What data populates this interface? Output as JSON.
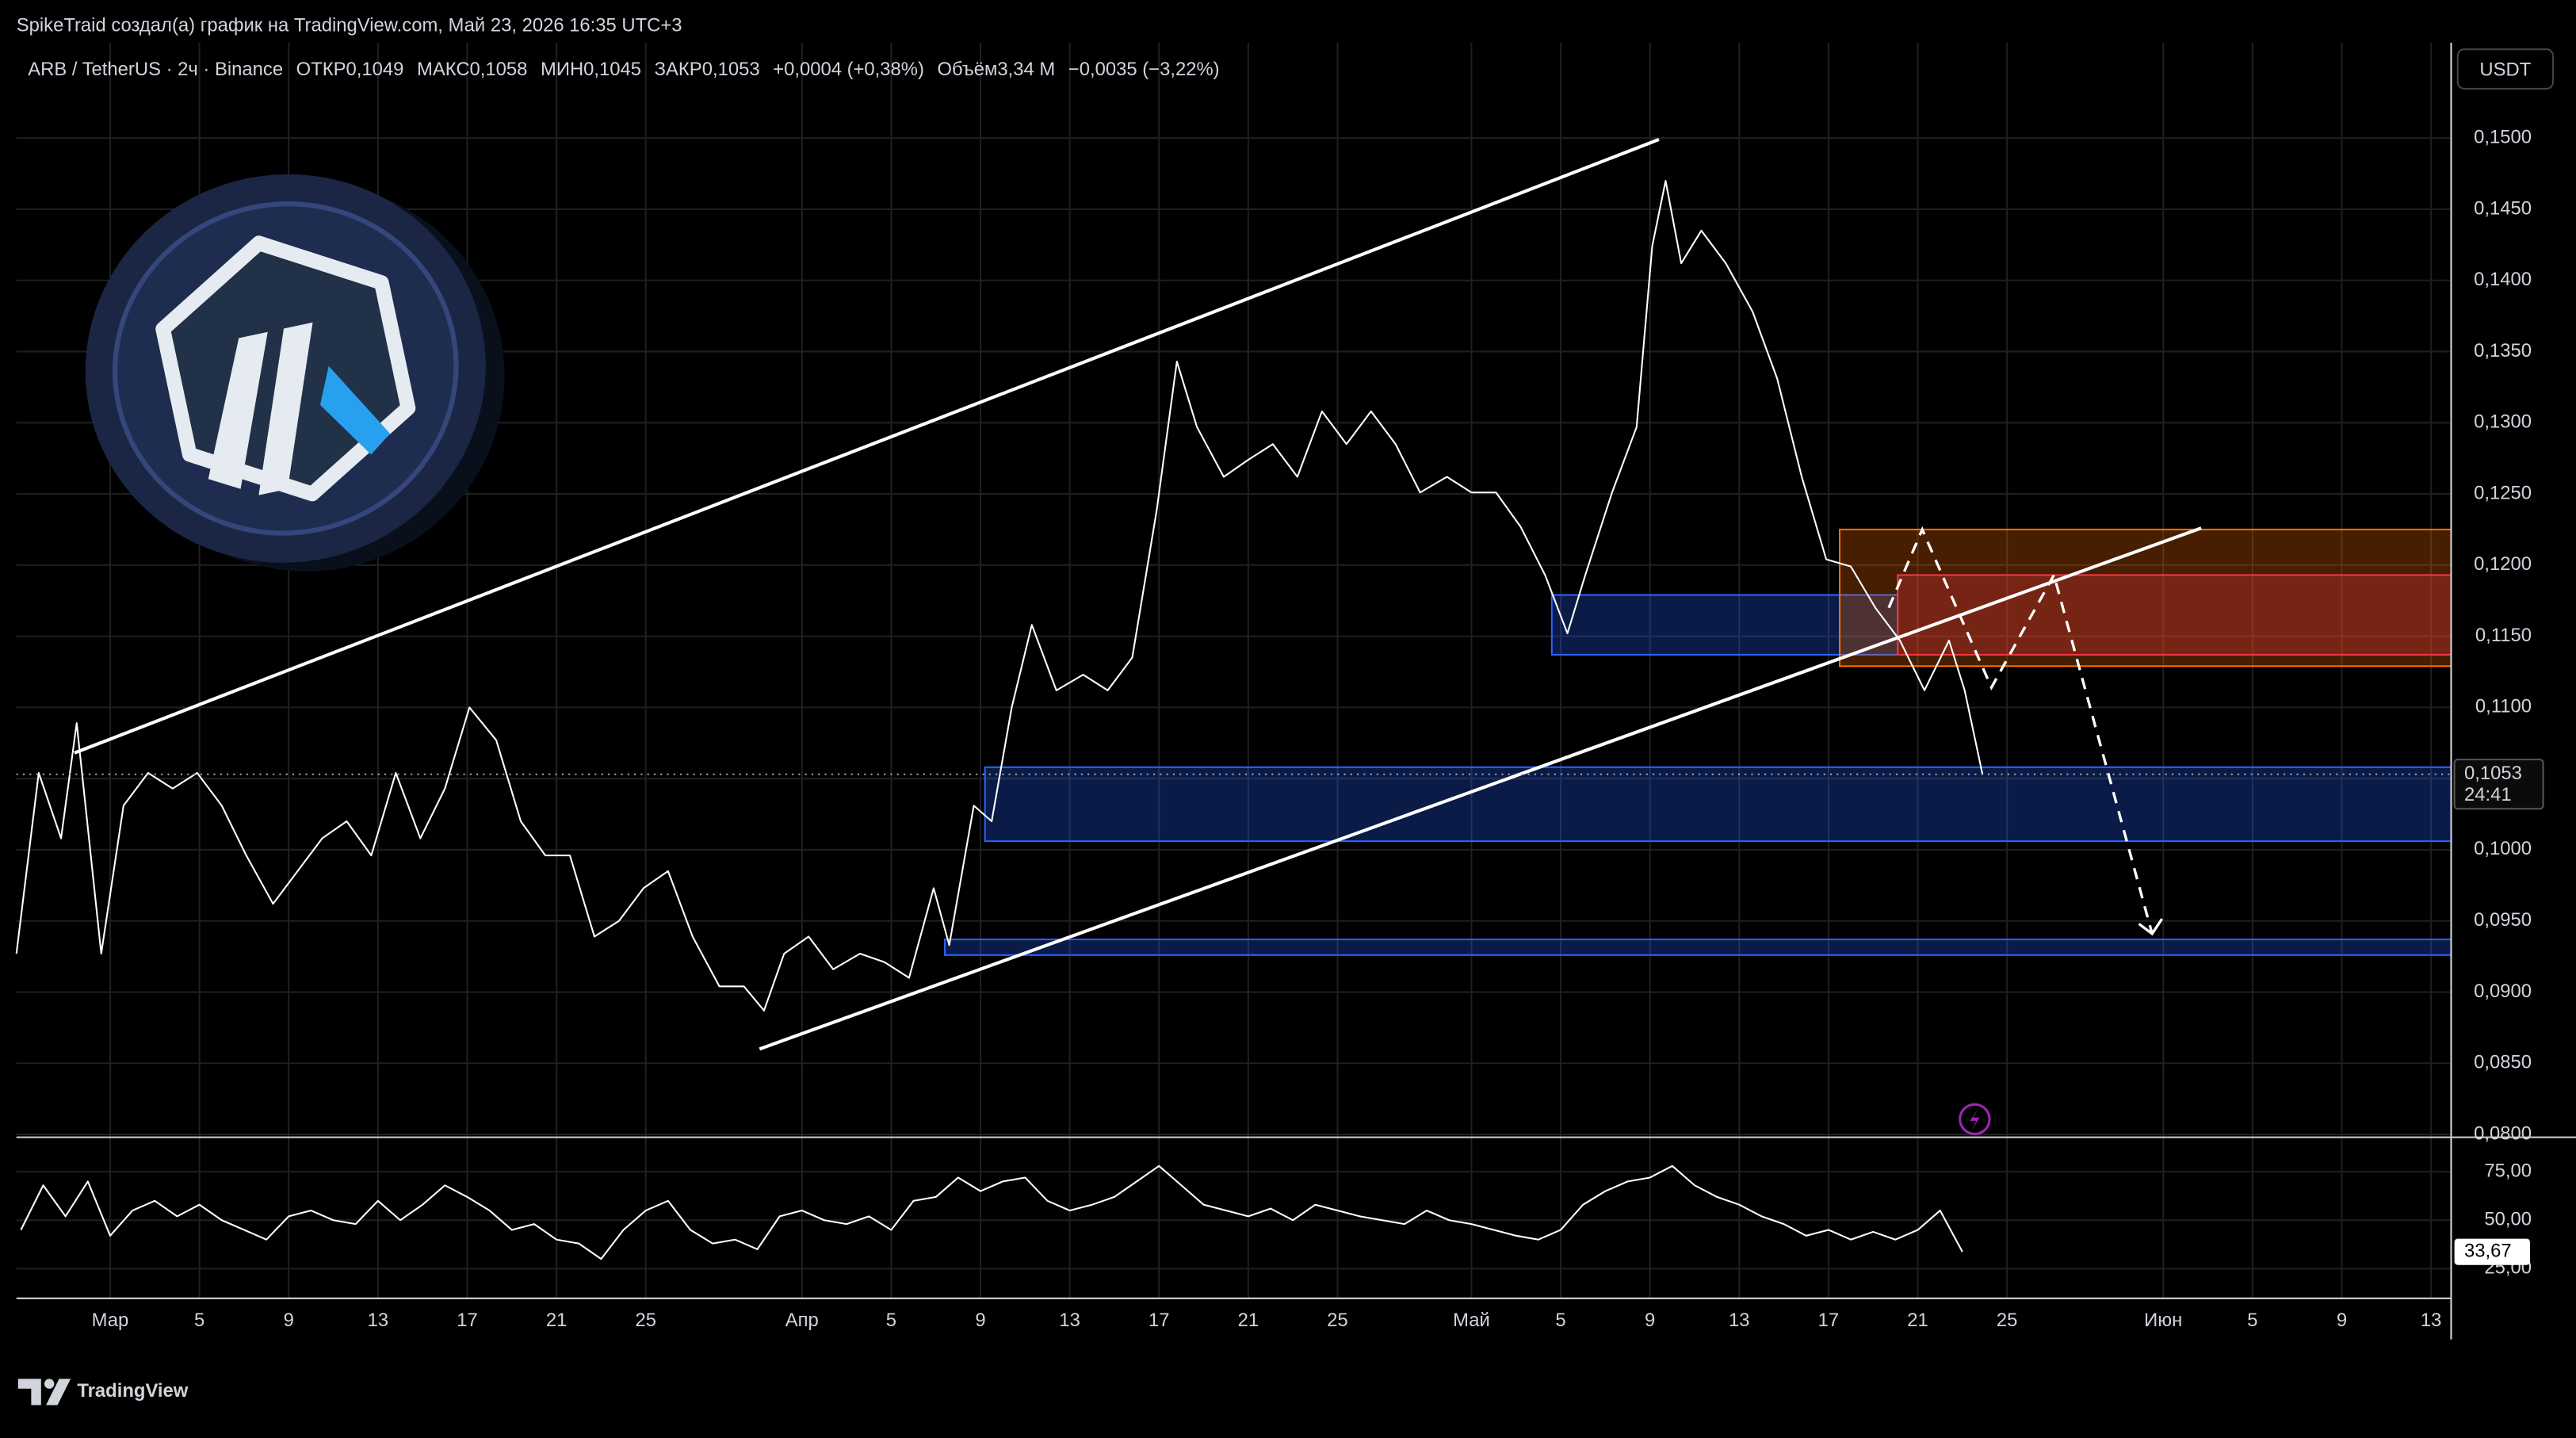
{
  "page": {
    "attribution": "SpikeTraid создал(а) график на TradingView.com, Май 23, 2026 16:35 UTC+3",
    "brand": "TradingView"
  },
  "chart_data": [
    {
      "type": "line",
      "legend": {
        "symbol": "ARB / TetherUS · 2ч · Binance",
        "items": [
          "ОТКР0,1049",
          "МАКС0,1058",
          "МИН0,1045",
          "ЗАКР0,1053",
          "+0,0004 (+0,38%)",
          "Объём3,34 М",
          "−0,0035 (−3,22%)"
        ]
      },
      "currency": "USDT",
      "last_value_label": "0,1053",
      "countdown": "24:41",
      "grid": true,
      "xlim": [
        -4.2,
        104.9
      ],
      "xticks": [
        {
          "value": 0,
          "label": "Мар"
        },
        {
          "value": 4,
          "label": "5"
        },
        {
          "value": 8,
          "label": "9"
        },
        {
          "value": 12,
          "label": "13"
        },
        {
          "value": 16,
          "label": "17"
        },
        {
          "value": 20,
          "label": "21"
        },
        {
          "value": 24,
          "label": "25"
        },
        {
          "value": 31,
          "label": "Апр"
        },
        {
          "value": 35,
          "label": "5"
        },
        {
          "value": 39,
          "label": "9"
        },
        {
          "value": 43,
          "label": "13"
        },
        {
          "value": 47,
          "label": "17"
        },
        {
          "value": 51,
          "label": "21"
        },
        {
          "value": 55,
          "label": "25"
        },
        {
          "value": 61,
          "label": "Май"
        },
        {
          "value": 65,
          "label": "5"
        },
        {
          "value": 69,
          "label": "9"
        },
        {
          "value": 73,
          "label": "13"
        },
        {
          "value": 77,
          "label": "17"
        },
        {
          "value": 81,
          "label": "21"
        },
        {
          "value": 85,
          "label": "25"
        },
        {
          "value": 92,
          "label": "Июн"
        },
        {
          "value": 96,
          "label": "5"
        },
        {
          "value": 100,
          "label": "9"
        },
        {
          "value": 104,
          "label": "13"
        }
      ],
      "ylim": [
        0.0798,
        0.1567
      ],
      "yticks": [
        {
          "value": 0.08,
          "label": "0,0800"
        },
        {
          "value": 0.085,
          "label": "0,0850"
        },
        {
          "value": 0.09,
          "label": "0,0900"
        },
        {
          "value": 0.095,
          "label": "0,0950"
        },
        {
          "value": 0.1,
          "label": "0,1000"
        },
        {
          "value": 0.105,
          "label": "0,1050"
        },
        {
          "value": 0.11,
          "label": "0,1100"
        },
        {
          "value": 0.115,
          "label": "0,1150"
        },
        {
          "value": 0.12,
          "label": "0,1200"
        },
        {
          "value": 0.125,
          "label": "0,1250"
        },
        {
          "value": 0.13,
          "label": "0,1300"
        },
        {
          "value": 0.135,
          "label": "0,1350"
        },
        {
          "value": 0.14,
          "label": "0,1400"
        },
        {
          "value": 0.145,
          "label": "0,1450"
        },
        {
          "value": 0.15,
          "label": "0,1500"
        }
      ],
      "color": "#ffffff",
      "x": [
        -4.2,
        -3.2,
        -2.2,
        -1.5,
        -0.4,
        0.6,
        1.7,
        2.8,
        3.9,
        5.0,
        6.1,
        7.3,
        8.4,
        9.5,
        10.6,
        11.7,
        12.8,
        13.9,
        15.0,
        16.1,
        17.3,
        18.4,
        19.5,
        20.6,
        21.7,
        22.8,
        23.9,
        25.0,
        26.1,
        27.3,
        28.4,
        29.3,
        30.2,
        31.3,
        32.4,
        33.6,
        34.7,
        35.8,
        36.9,
        37.6,
        38.7,
        39.5,
        40.4,
        41.3,
        42.4,
        43.6,
        44.7,
        45.8,
        46.9,
        47.8,
        48.7,
        49.9,
        51.0,
        52.1,
        53.2,
        54.3,
        55.4,
        56.5,
        57.6,
        58.7,
        59.9,
        61.0,
        62.1,
        63.2,
        64.3,
        65.3,
        66.1,
        67.3,
        68.4,
        69.1,
        69.7,
        70.4,
        71.3,
        72.4,
        73.6,
        74.7,
        75.8,
        76.9,
        78.0,
        79.1,
        80.2,
        81.3,
        82.4,
        83.1,
        83.9
      ],
      "values": [
        0.0927,
        0.1054,
        0.1008,
        0.1089,
        0.0927,
        0.1031,
        0.1054,
        0.1043,
        0.1054,
        0.1031,
        0.0996,
        0.0962,
        0.0985,
        0.1008,
        0.102,
        0.0996,
        0.1054,
        0.1008,
        0.1043,
        0.11,
        0.1077,
        0.102,
        0.0996,
        0.0996,
        0.0939,
        0.095,
        0.0973,
        0.0985,
        0.0939,
        0.0904,
        0.0904,
        0.0887,
        0.0927,
        0.0939,
        0.0916,
        0.0927,
        0.0921,
        0.091,
        0.0973,
        0.0933,
        0.1031,
        0.102,
        0.11,
        0.1158,
        0.1112,
        0.1123,
        0.1112,
        0.1135,
        0.1239,
        0.1343,
        0.1297,
        0.1262,
        0.1274,
        0.1285,
        0.1262,
        0.1308,
        0.1285,
        0.1308,
        0.1285,
        0.1251,
        0.1262,
        0.1251,
        0.1251,
        0.1227,
        0.1193,
        0.1152,
        0.1193,
        0.1251,
        0.1297,
        0.1424,
        0.147,
        0.1412,
        0.1435,
        0.1412,
        0.1378,
        0.1331,
        0.1262,
        0.1204,
        0.1199,
        0.117,
        0.1147,
        0.1112,
        0.1147,
        0.1112,
        0.1053
      ],
      "zones": [
        {
          "x": [
            39.2,
            104.9
          ],
          "low": 0.1006,
          "high": 0.1058,
          "color": "#2962ff"
        },
        {
          "x": [
            37.4,
            104.9
          ],
          "low": 0.0926,
          "high": 0.0937,
          "color": "#2962ff"
        },
        {
          "x": [
            64.6,
            80.1
          ],
          "low": 0.1137,
          "high": 0.1179,
          "color": "#2962ff"
        },
        {
          "x": [
            77.5,
            104.9
          ],
          "low": 0.1129,
          "high": 0.1225,
          "color": "#ff6d00"
        },
        {
          "x": [
            80.1,
            104.9
          ],
          "low": 0.1137,
          "high": 0.1193,
          "color": "#f23645"
        }
      ],
      "trendlines": [
        {
          "x": [
            -1.6,
            69.4
          ],
          "y": [
            0.1068,
            0.1499
          ],
          "color": "#ffffff"
        },
        {
          "x": [
            29.1,
            93.7
          ],
          "y": [
            0.086,
            0.1226
          ],
          "color": "#ffffff"
        }
      ],
      "projection": {
        "x": [
          79.7,
          81.2,
          84.3,
          87.1,
          91.5
        ],
        "y": [
          0.117,
          0.1225,
          0.1114,
          0.1193,
          0.0941
        ],
        "color": "#ffffff"
      }
    },
    {
      "type": "line",
      "xlim": [
        -4.2,
        104.9
      ],
      "ylim": [
        9.7,
        92.8
      ],
      "yticks": [
        {
          "value": 25,
          "label": "25,00"
        },
        {
          "value": 50,
          "label": "50,00"
        },
        {
          "value": 75,
          "label": "75,00"
        }
      ],
      "color": "#ffffff",
      "last_value_label": "33,67",
      "x": [
        -4,
        -3,
        -2,
        -1,
        0,
        1,
        2,
        3,
        4,
        5,
        6,
        7,
        8,
        9,
        10,
        11,
        12,
        13,
        14,
        15,
        16,
        17,
        18,
        19,
        20,
        21,
        22,
        23,
        24,
        25,
        26,
        27,
        28,
        29,
        30,
        31,
        32,
        33,
        34,
        35,
        36,
        37,
        38,
        39,
        40,
        41,
        42,
        43,
        44,
        45,
        46,
        47,
        48,
        49,
        50,
        51,
        52,
        53,
        54,
        55,
        56,
        57,
        58,
        59,
        60,
        61,
        62,
        63,
        64,
        65,
        66,
        67,
        68,
        69,
        70,
        71,
        72,
        73,
        74,
        75,
        76,
        77,
        78,
        79,
        80,
        81,
        82,
        83
      ],
      "values": [
        45,
        68,
        52,
        70,
        42,
        55,
        60,
        52,
        58,
        50,
        45,
        40,
        52,
        55,
        50,
        48,
        60,
        50,
        58,
        68,
        62,
        55,
        45,
        48,
        40,
        38,
        30,
        45,
        55,
        60,
        45,
        38,
        40,
        35,
        52,
        55,
        50,
        48,
        52,
        45,
        60,
        62,
        72,
        65,
        70,
        72,
        60,
        55,
        58,
        62,
        70,
        78,
        68,
        58,
        55,
        52,
        56,
        50,
        58,
        55,
        52,
        50,
        48,
        55,
        50,
        48,
        45,
        42,
        40,
        45,
        58,
        65,
        70,
        72,
        78,
        68,
        62,
        58,
        52,
        48,
        42,
        45,
        40,
        44,
        40,
        45,
        55,
        33.67
      ]
    }
  ]
}
